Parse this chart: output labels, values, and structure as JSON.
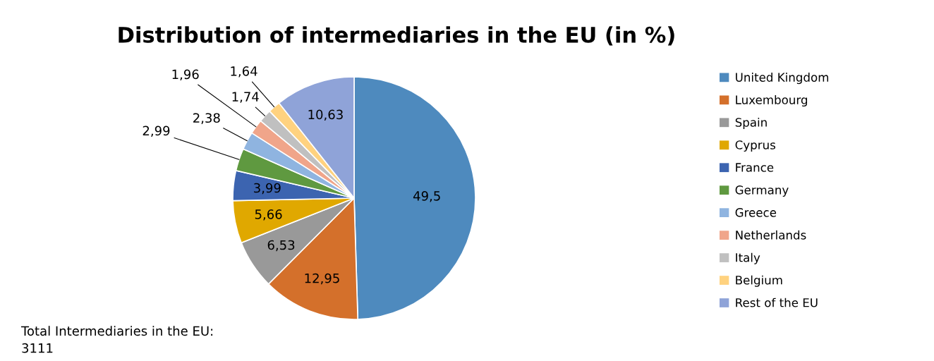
{
  "chart_data": {
    "type": "pie",
    "title": "Distribution of intermediaries in the EU (in %)",
    "categories": [
      "United Kingdom",
      "Luxembourg",
      "Spain",
      "Cyprus",
      "France",
      "Germany",
      "Greece",
      "Netherlands",
      "Italy",
      "Belgium",
      "Rest of the EU"
    ],
    "values": [
      49.5,
      12.95,
      6.53,
      5.66,
      3.99,
      2.99,
      2.38,
      1.96,
      1.74,
      1.64,
      10.63
    ],
    "value_labels": [
      "49,5",
      "12,95",
      "6,53",
      "5,66",
      "3,99",
      "2,99",
      "2,38",
      "1,96",
      "1,74",
      "1,64",
      "10,63"
    ],
    "colors": [
      "#4e8abe",
      "#d4702b",
      "#999999",
      "#e0a800",
      "#3c64b0",
      "#5f9940",
      "#8fb4e0",
      "#f0a58a",
      "#c0c0c0",
      "#ffd27f",
      "#8fa3d8"
    ],
    "legend": "right",
    "annotations": [
      "Total Intermediaries in the EU:\n3111"
    ]
  }
}
